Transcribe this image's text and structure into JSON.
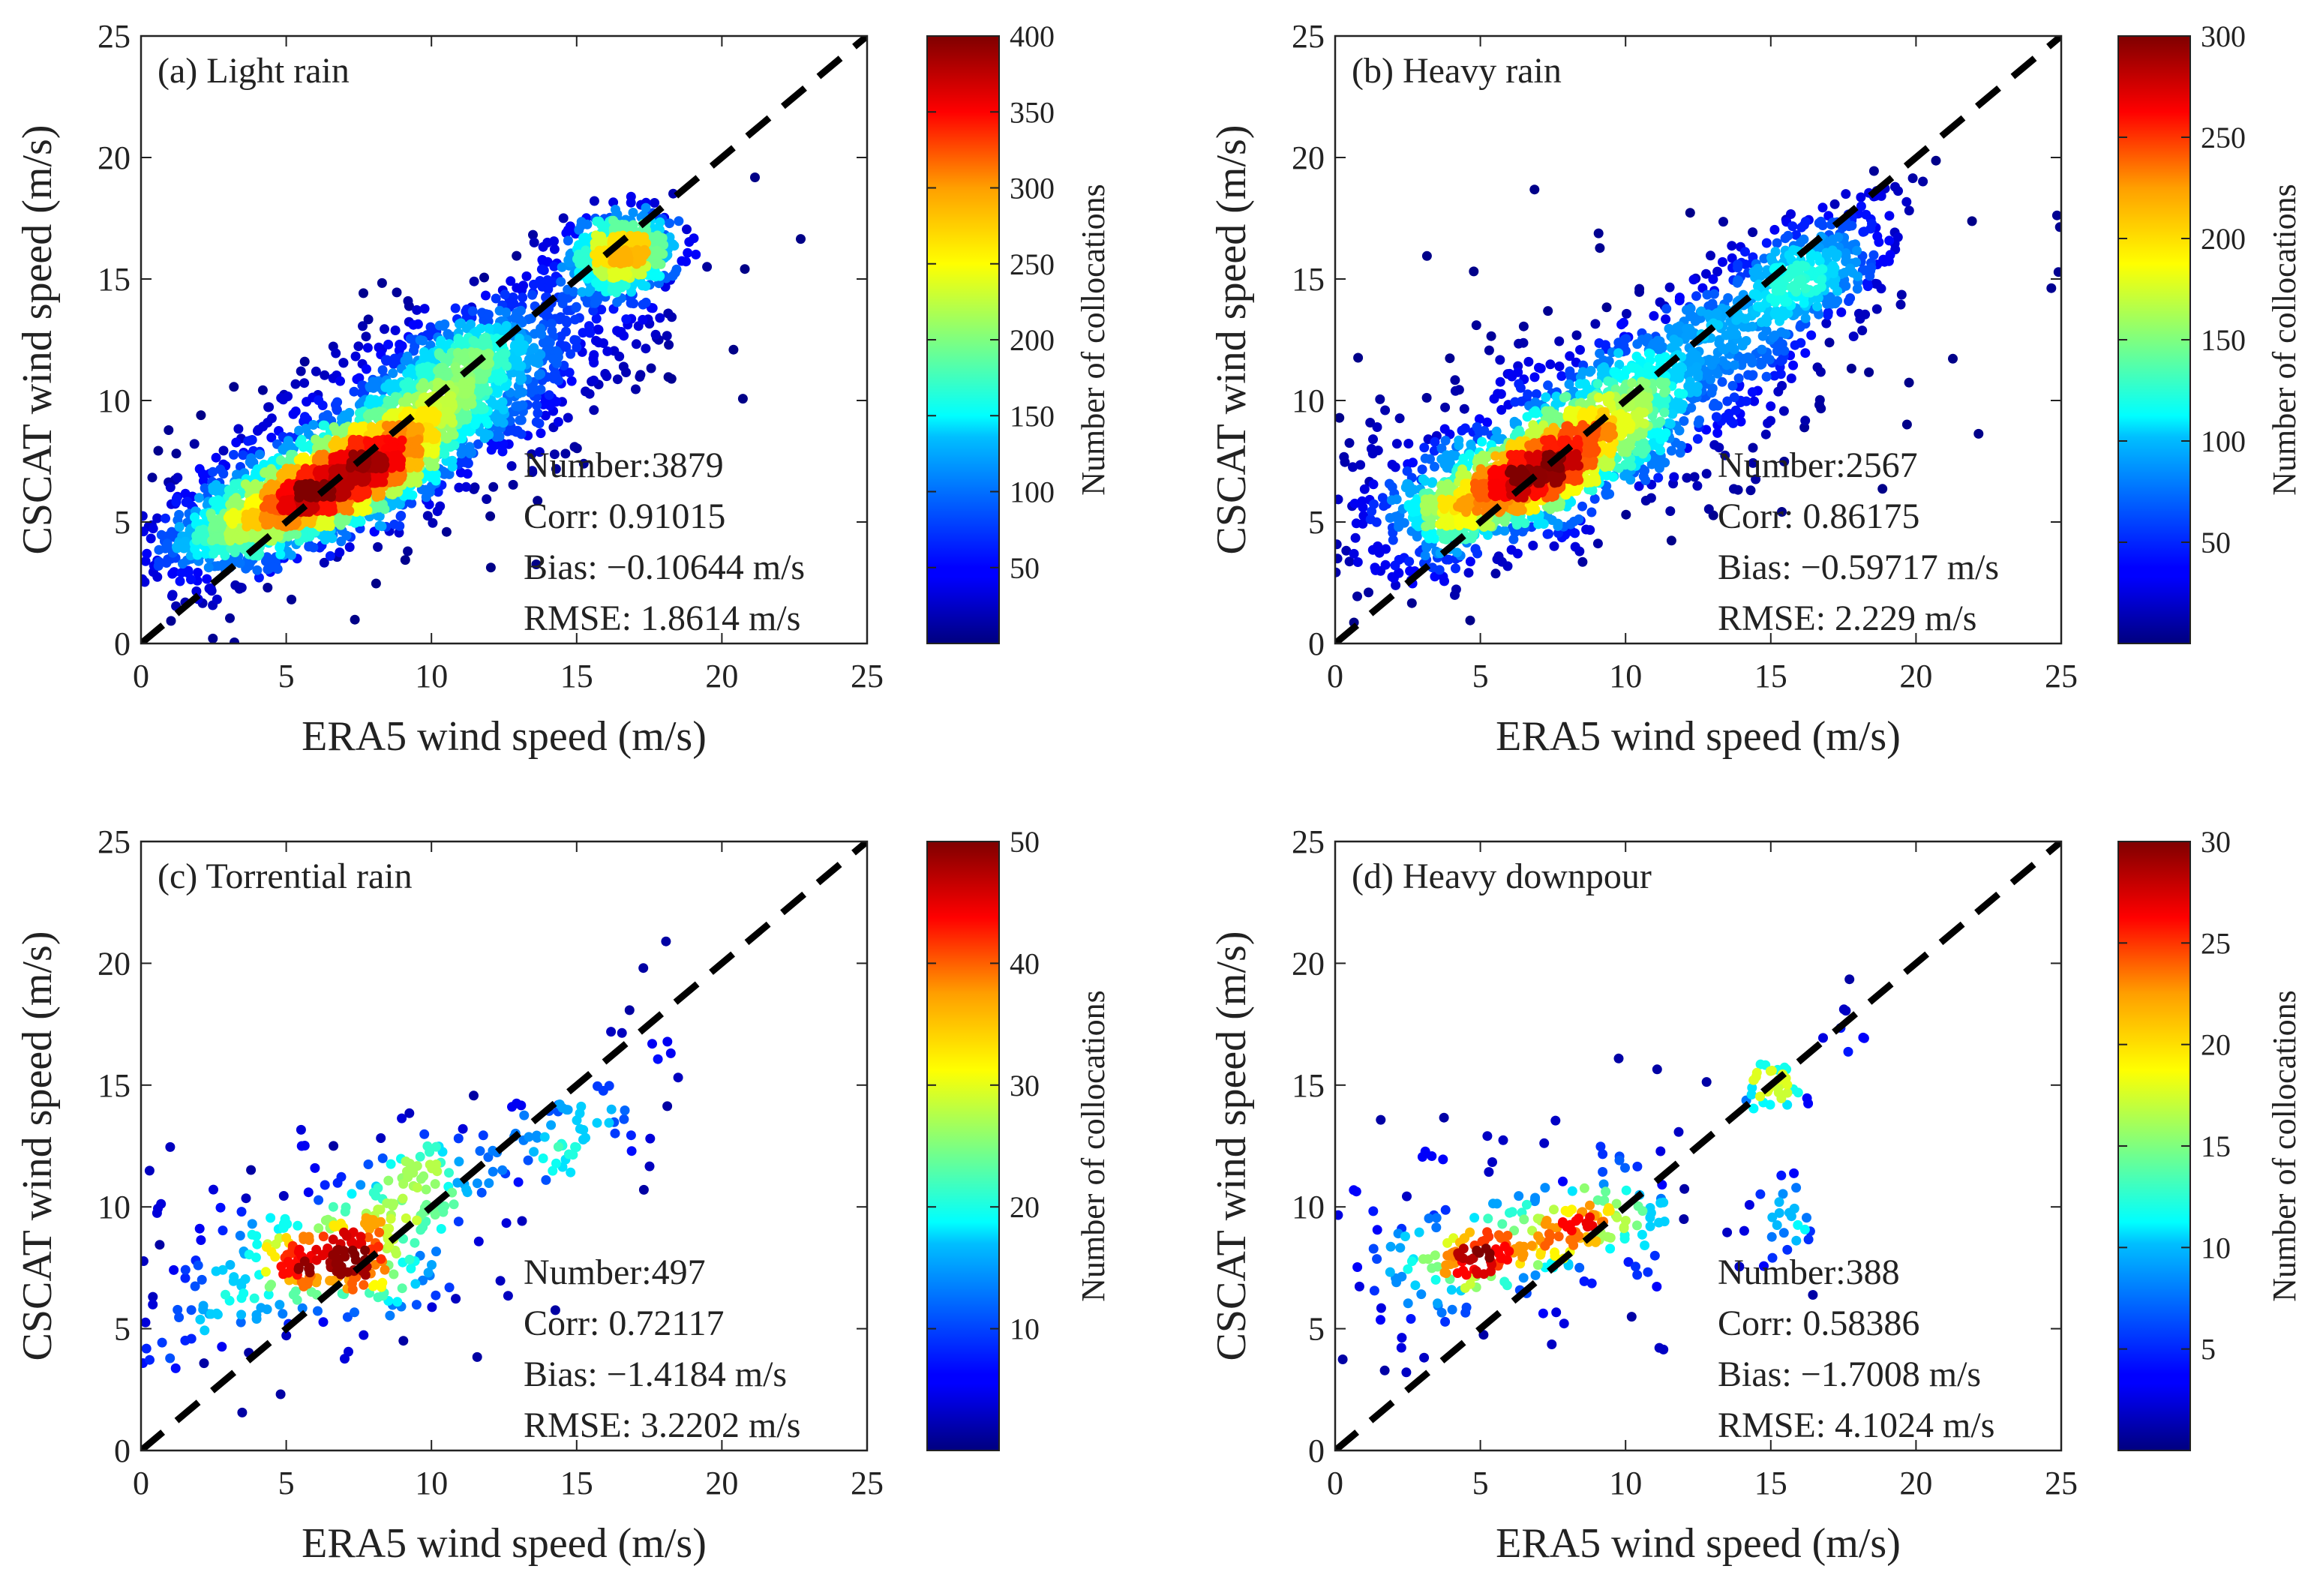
{
  "chart_data": [
    {
      "type": "scatter",
      "panel": "a",
      "title": "(a) Light rain",
      "xlabel": "ERA5 wind speed (m/s)",
      "ylabel": "CSCAT wind speed (m/s)",
      "xlim": [
        0,
        25
      ],
      "ylim": [
        0,
        25
      ],
      "xticks": [
        0,
        5,
        10,
        15,
        20,
        25
      ],
      "yticks": [
        0,
        5,
        10,
        15,
        20,
        25
      ],
      "reference_line": "1:1 dashed black",
      "stats": [
        "Number:3879",
        "Corr: 0.91015",
        "Bias: −0.10644 m/s",
        "RMSE: 1.8614 m/s"
      ],
      "colorbar": {
        "label": "Number of collocations",
        "min": 0,
        "max": 400,
        "ticks": [
          50,
          100,
          150,
          200,
          250,
          300,
          350,
          400
        ],
        "colormap": "jet"
      },
      "density_clusters": [
        {
          "x": 6.5,
          "y": 6.5,
          "sx": 2.6,
          "sy": 1.6,
          "rho": 0.75,
          "n": 1900
        },
        {
          "x": 11,
          "y": 11,
          "sx": 2.8,
          "sy": 2.0,
          "rho": 0.7,
          "n": 900
        },
        {
          "x": 16.5,
          "y": 16,
          "sx": 1.0,
          "sy": 0.8,
          "rho": 0.2,
          "n": 500
        },
        {
          "x": 9,
          "y": 9,
          "sx": 4.5,
          "sy": 3.2,
          "rho": 0.7,
          "n": 500
        },
        {
          "x": 3,
          "y": 5,
          "sx": 1.5,
          "sy": 1.8,
          "rho": 0.3,
          "n": 79
        }
      ]
    },
    {
      "type": "scatter",
      "panel": "b",
      "title": "(b) Heavy rain",
      "xlabel": "ERA5 wind speed (m/s)",
      "ylabel": "CSCAT wind speed (m/s)",
      "xlim": [
        0,
        25
      ],
      "ylim": [
        0,
        25
      ],
      "xticks": [
        0,
        5,
        10,
        15,
        20,
        25
      ],
      "yticks": [
        0,
        5,
        10,
        15,
        20,
        25
      ],
      "reference_line": "1:1 dashed black",
      "stats": [
        "Number:2567",
        "Corr: 0.86175",
        "Bias: −0.59717 m/s",
        "RMSE: 2.229 m/s"
      ],
      "colorbar": {
        "label": "Number of collocations",
        "min": 0,
        "max": 300,
        "ticks": [
          50,
          100,
          150,
          200,
          250,
          300
        ],
        "colormap": "jet"
      },
      "density_clusters": [
        {
          "x": 6.5,
          "y": 6.8,
          "sx": 2.2,
          "sy": 1.5,
          "rho": 0.7,
          "n": 1100
        },
        {
          "x": 10,
          "y": 10,
          "sx": 2.5,
          "sy": 2.0,
          "rho": 0.7,
          "n": 600
        },
        {
          "x": 16,
          "y": 15,
          "sx": 1.8,
          "sy": 1.6,
          "rho": 0.5,
          "n": 400
        },
        {
          "x": 9,
          "y": 9,
          "sx": 5.0,
          "sy": 3.5,
          "rho": 0.6,
          "n": 400
        },
        {
          "x": 2.5,
          "y": 6,
          "sx": 1.5,
          "sy": 2.2,
          "rho": 0.2,
          "n": 67
        }
      ]
    },
    {
      "type": "scatter",
      "panel": "c",
      "title": "(c) Torrential rain",
      "xlabel": "ERA5 wind speed (m/s)",
      "ylabel": "CSCAT wind speed (m/s)",
      "xlim": [
        0,
        25
      ],
      "ylim": [
        0,
        25
      ],
      "xticks": [
        0,
        5,
        10,
        15,
        20,
        25
      ],
      "yticks": [
        0,
        5,
        10,
        15,
        20,
        25
      ],
      "reference_line": "1:1 dashed black",
      "stats": [
        "Number:497",
        "Corr: 0.72117",
        "Bias: −1.4184 m/s",
        "RMSE: 3.2202 m/s"
      ],
      "colorbar": {
        "label": "Number of collocations",
        "min": 0,
        "max": 50,
        "ticks": [
          10,
          20,
          30,
          40,
          50
        ],
        "colormap": "jet"
      },
      "density_clusters": [
        {
          "x": 6.5,
          "y": 7.8,
          "sx": 1.3,
          "sy": 1.0,
          "rho": 0.3,
          "n": 160
        },
        {
          "x": 10,
          "y": 10.5,
          "sx": 0.9,
          "sy": 1.3,
          "rho": 0.3,
          "n": 70
        },
        {
          "x": 14.5,
          "y": 13,
          "sx": 1.5,
          "sy": 1.2,
          "rho": 0.3,
          "n": 60
        },
        {
          "x": 6,
          "y": 8,
          "sx": 3.5,
          "sy": 2.5,
          "rho": 0.3,
          "n": 170
        },
        {
          "x": 17.5,
          "y": 18,
          "sx": 0.8,
          "sy": 1.3,
          "rho": 0.0,
          "n": 10
        },
        {
          "x": 2,
          "y": 6.5,
          "sx": 1.0,
          "sy": 1.8,
          "rho": 0.0,
          "n": 27
        }
      ]
    },
    {
      "type": "scatter",
      "panel": "d",
      "title": "(d) Heavy downpour",
      "xlabel": "ERA5 wind speed (m/s)",
      "ylabel": "CSCAT wind speed (m/s)",
      "xlim": [
        0,
        25
      ],
      "ylim": [
        0,
        25
      ],
      "xticks": [
        0,
        5,
        10,
        15,
        20,
        25
      ],
      "yticks": [
        0,
        5,
        10,
        15,
        20,
        25
      ],
      "reference_line": "1:1 dashed black",
      "stats": [
        "Number:388",
        "Corr: 0.58386",
        "Bias: −1.7008 m/s",
        "RMSE: 4.1024 m/s"
      ],
      "colorbar": {
        "label": "Number of collocations",
        "min": 0,
        "max": 30,
        "ticks": [
          5,
          10,
          15,
          20,
          25,
          30
        ],
        "colormap": "jet"
      },
      "density_clusters": [
        {
          "x": 5,
          "y": 8,
          "sx": 1.3,
          "sy": 0.8,
          "rho": 0.2,
          "n": 90
        },
        {
          "x": 8.5,
          "y": 9.3,
          "sx": 1.4,
          "sy": 0.8,
          "rho": 0.4,
          "n": 90
        },
        {
          "x": 15,
          "y": 15,
          "sx": 0.6,
          "sy": 0.6,
          "rho": 0.0,
          "n": 35
        },
        {
          "x": 15.5,
          "y": 9.5,
          "sx": 0.5,
          "sy": 1.0,
          "rho": 0.0,
          "n": 25
        },
        {
          "x": 6.5,
          "y": 9,
          "sx": 4.0,
          "sy": 2.5,
          "rho": 0.2,
          "n": 130
        },
        {
          "x": 17.5,
          "y": 17.5,
          "sx": 0.8,
          "sy": 0.8,
          "rho": 0.0,
          "n": 8
        },
        {
          "x": 2.5,
          "y": 6.5,
          "sx": 1.0,
          "sy": 1.5,
          "rho": 0.0,
          "n": 10
        }
      ]
    }
  ]
}
